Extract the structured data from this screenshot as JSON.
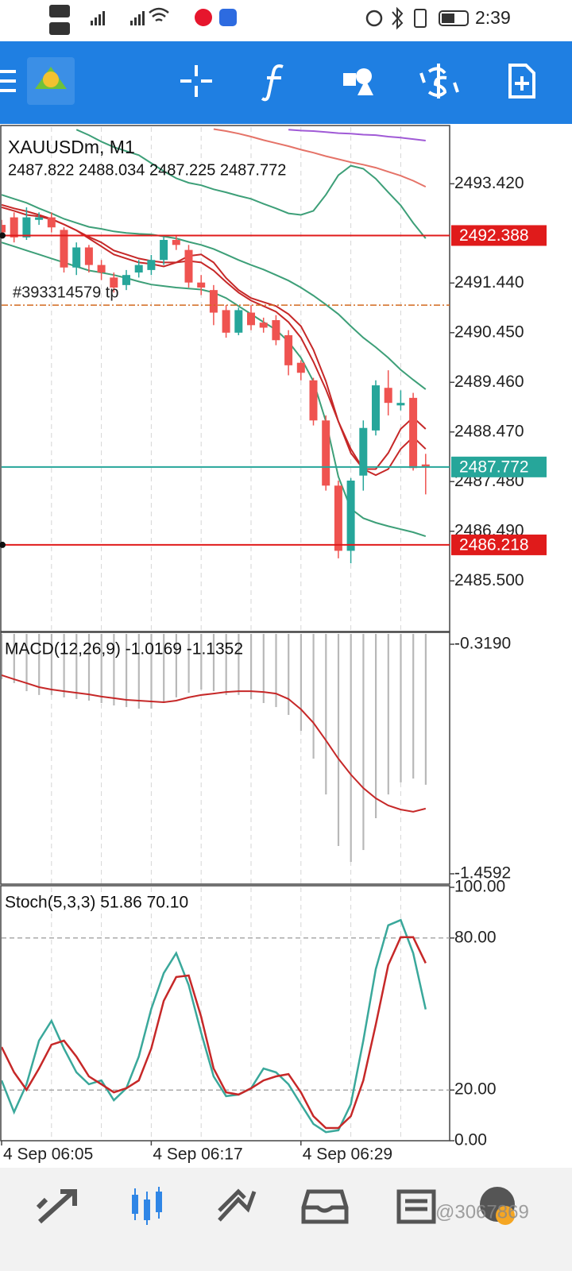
{
  "status_bar": {
    "time": "2:39"
  },
  "watermark": "@3067869",
  "chart_data": [
    {
      "type": "candlestick",
      "title": "XAUUSDm, M1",
      "subtitle": "2487.822 2488.034 2487.225 2487.772",
      "categories": [
        "4 Sep 06:05",
        null,
        null,
        null,
        null,
        null,
        null,
        null,
        null,
        null,
        null,
        null,
        "4 Sep 06:17",
        null,
        null,
        null,
        null,
        null,
        null,
        null,
        null,
        null,
        null,
        null,
        "4 Sep 06:29",
        null,
        null,
        null,
        null,
        null,
        null,
        null,
        null,
        null,
        null
      ],
      "open": [
        2492.6,
        2492.75,
        2492.35,
        2492.7,
        2492.75,
        2492.5,
        2491.75,
        2492.15,
        2491.8,
        2491.55,
        2491.4,
        2491.65,
        2491.7,
        2491.9,
        2492.3,
        2492.1,
        2491.45,
        2491.3,
        2490.9,
        2490.45,
        2490.85,
        2490.65,
        2490.7,
        2490.4,
        2489.85,
        2489.5,
        2488.7,
        2487.4,
        2486.1,
        2487.6,
        2488.5,
        2489.35,
        2489.0,
        2489.15,
        2487.822
      ],
      "high": [
        2492.7,
        2492.85,
        2492.95,
        2492.85,
        2492.85,
        2492.55,
        2492.25,
        2492.2,
        2491.9,
        2491.65,
        2491.7,
        2491.9,
        2492.0,
        2492.4,
        2492.4,
        2492.2,
        2491.6,
        2491.4,
        2491.0,
        2490.95,
        2491.0,
        2490.75,
        2490.8,
        2490.5,
        2489.9,
        2489.55,
        2488.8,
        2487.5,
        2487.55,
        2488.7,
        2489.5,
        2489.7,
        2489.3,
        2489.25,
        2488.034
      ],
      "low": [
        2492.35,
        2492.25,
        2492.3,
        2492.6,
        2492.45,
        2491.65,
        2491.6,
        2491.65,
        2491.5,
        2491.25,
        2491.3,
        2491.55,
        2491.6,
        2491.8,
        2492.1,
        2491.35,
        2491.2,
        2490.6,
        2490.35,
        2490.4,
        2490.5,
        2490.45,
        2490.2,
        2489.6,
        2489.5,
        2488.6,
        2487.3,
        2485.95,
        2485.85,
        2487.3,
        2488.4,
        2488.8,
        2488.9,
        2487.7,
        2487.225
      ],
      "close": [
        2492.45,
        2492.35,
        2492.75,
        2492.75,
        2492.55,
        2491.75,
        2492.15,
        2491.8,
        2491.65,
        2491.35,
        2491.6,
        2491.8,
        2491.9,
        2492.3,
        2492.2,
        2491.45,
        2491.35,
        2490.85,
        2490.45,
        2490.9,
        2490.6,
        2490.55,
        2490.3,
        2489.8,
        2489.65,
        2488.7,
        2487.4,
        2486.1,
        2487.5,
        2488.55,
        2489.4,
        2489.05,
        2489.05,
        2487.75,
        2487.772
      ],
      "up_color": "#26a69a",
      "down_color": "#ef5350",
      "overlays": [
        {
          "color": "#3d9f78",
          "values": [
            null,
            null,
            null,
            null,
            null,
            null,
            2494.5,
            2494.39,
            2494.26,
            2494.15,
            2494.07,
            2493.99,
            2493.83,
            2493.67,
            2493.53,
            2493.44,
            2493.39,
            2493.31,
            2493.25,
            2493.18,
            2493.12,
            2493.02,
            2492.93,
            2492.83,
            2492.8,
            2492.88,
            2493.2,
            2493.59,
            2493.78,
            2493.72,
            2493.52,
            2493.25,
            2492.99,
            2492.64,
            2492.33
          ]
        },
        {
          "color": "#3d9f78",
          "values": [
            2493.2,
            2493.12,
            2493.04,
            2492.93,
            2492.83,
            2492.72,
            2492.64,
            2492.56,
            2492.52,
            2492.47,
            2492.44,
            2492.42,
            2492.41,
            2492.37,
            2492.33,
            2492.26,
            2492.2,
            2492.12,
            2492.01,
            2491.9,
            2491.8,
            2491.71,
            2491.6,
            2491.49,
            2491.35,
            2491.19,
            2491.01,
            2490.82,
            2490.58,
            2490.35,
            2490.16,
            2489.95,
            2489.71,
            2489.51,
            2489.32
          ]
        },
        {
          "color": "#3d9f78",
          "values": [
            2492.25,
            2492.17,
            2492.09,
            2492.01,
            2491.93,
            2491.85,
            2491.77,
            2491.69,
            2491.65,
            2491.6,
            2491.54,
            2491.47,
            2491.41,
            2491.38,
            2491.35,
            2491.33,
            2491.31,
            2491.25,
            2491.14,
            2490.98,
            2490.82,
            2490.66,
            2490.51,
            2490.27,
            2489.95,
            2489.48,
            2488.68,
            2487.58,
            2486.94,
            2486.75,
            2486.66,
            2486.59,
            2486.53,
            2486.47,
            2486.39
          ]
        },
        {
          "color": "#c62828",
          "values": [
            2492.95,
            2492.88,
            2492.8,
            2492.77,
            2492.71,
            2492.61,
            2492.49,
            2492.33,
            2492.17,
            2492.01,
            2491.93,
            2491.85,
            2491.82,
            2491.77,
            2491.85,
            2491.98,
            2492.01,
            2491.85,
            2491.54,
            2491.3,
            2491.14,
            2491.06,
            2490.98,
            2490.82,
            2490.58,
            2490.11,
            2489.48,
            2488.68,
            2488.05,
            2487.73,
            2487.73,
            2488.05,
            2488.53,
            2488.76,
            2488.53
          ]
        },
        {
          "color": "#c62828",
          "values": [
            2493.0,
            2492.93,
            2492.87,
            2492.8,
            2492.72,
            2492.61,
            2492.49,
            2492.36,
            2492.25,
            2492.09,
            2492.01,
            2491.93,
            2491.88,
            2491.85,
            2491.85,
            2491.88,
            2491.85,
            2491.69,
            2491.46,
            2491.25,
            2491.09,
            2490.98,
            2490.87,
            2490.66,
            2490.35,
            2489.87,
            2489.32,
            2488.68,
            2488.13,
            2487.73,
            2487.61,
            2487.73,
            2488.13,
            2488.37,
            2488.13
          ]
        },
        {
          "color": "#e57368",
          "values": [
            null,
            null,
            null,
            null,
            null,
            null,
            null,
            null,
            null,
            null,
            null,
            null,
            null,
            null,
            null,
            null,
            null,
            2494.51,
            2494.47,
            2494.42,
            2494.36,
            2494.29,
            2494.23,
            2494.17,
            2494.1,
            2494.04,
            2493.97,
            2493.91,
            2493.85,
            2493.8,
            2493.74,
            2493.66,
            2493.58,
            2493.48,
            2493.36
          ]
        },
        {
          "color": "#a05ad6",
          "values": [
            null,
            null,
            null,
            null,
            null,
            null,
            null,
            null,
            null,
            null,
            null,
            null,
            null,
            null,
            null,
            null,
            null,
            null,
            null,
            null,
            null,
            null,
            null,
            2494.5,
            2494.48,
            2494.47,
            2494.45,
            2494.43,
            2494.42,
            2494.4,
            2494.39,
            2494.36,
            2494.34,
            2494.31,
            2494.28
          ]
        }
      ],
      "price_lines": [
        {
          "value": 2492.388,
          "color": "#e01b1b"
        },
        {
          "value": 2486.218,
          "color": "#e01b1b"
        },
        {
          "value": 2487.772,
          "color": "#26a69a"
        }
      ],
      "order_line": {
        "value": 2491.0,
        "label": "#393314579 tp",
        "color": "#d2691e"
      },
      "ylim": [
        2484.49,
        2494.55
      ],
      "yticks": [
        {
          "value": 2493.42,
          "label": "2493.420"
        },
        {
          "value": 2491.44,
          "label": "2491.440"
        },
        {
          "value": 2490.45,
          "label": "2490.450"
        },
        {
          "value": 2489.46,
          "label": "2489.460"
        },
        {
          "value": 2488.47,
          "label": "2488.470"
        },
        {
          "value": 2487.48,
          "label": "2487.480"
        },
        {
          "value": 2486.49,
          "label": "2486.490"
        },
        {
          "value": 2485.5,
          "label": "2485.500"
        }
      ]
    },
    {
      "type": "macd",
      "title": "MACD(12,26,9) -1.0169 -1.1352",
      "color": "#b8b8b8",
      "values": [
        -0.493,
        -0.512,
        -0.552,
        -0.571,
        -0.571,
        -0.583,
        -0.591,
        -0.599,
        -0.611,
        -0.623,
        -0.631,
        -0.639,
        -0.639,
        -0.611,
        -0.583,
        -0.56,
        -0.544,
        -0.552,
        -0.571,
        -0.571,
        -0.591,
        -0.611,
        -0.631,
        -0.67,
        -0.749,
        -0.887,
        -1.065,
        -1.321,
        -1.4,
        -1.341,
        -1.183,
        -1.065,
        -1.005,
        -0.986,
        -1.0169
      ],
      "signal": {
        "color": "#c62828",
        "values": [
          -0.473,
          -0.493,
          -0.512,
          -0.532,
          -0.544,
          -0.552,
          -0.56,
          -0.568,
          -0.579,
          -0.587,
          -0.595,
          -0.599,
          -0.603,
          -0.607,
          -0.599,
          -0.583,
          -0.571,
          -0.564,
          -0.556,
          -0.552,
          -0.552,
          -0.556,
          -0.564,
          -0.591,
          -0.642,
          -0.709,
          -0.796,
          -0.887,
          -0.966,
          -1.033,
          -1.084,
          -1.12,
          -1.14,
          -1.151,
          -1.1352
        ]
      },
      "ylim": [
        -1.5105,
        -0.2677
      ],
      "yticks": [
        {
          "value": -0.319,
          "label": "-0.3190"
        },
        -1.4592
      ]
    },
    {
      "type": "stochastic",
      "title": "Stoch(5,3,3) 51.86 70.10",
      "series": [
        {
          "color": "#3aa89b",
          "values": [
            23.8,
            11.3,
            22.3,
            39.5,
            47.3,
            36.4,
            27.0,
            22.3,
            23.8,
            16.0,
            20.7,
            33.2,
            52.0,
            66.1,
            74.0,
            61.4,
            42.6,
            25.4,
            17.6,
            18.2,
            20.7,
            28.5,
            27.0,
            22.3,
            14.4,
            6.6,
            3.4,
            4.1,
            14.4,
            39.5,
            67.7,
            85.0,
            87.1,
            74.0,
            51.86
          ]
        },
        {
          "color": "#c62828",
          "values": [
            37.0,
            27.0,
            20.1,
            28.5,
            37.9,
            39.5,
            33.2,
            25.4,
            22.3,
            19.1,
            20.7,
            23.8,
            36.4,
            55.2,
            64.6,
            65.2,
            48.9,
            28.5,
            19.1,
            18.2,
            20.7,
            23.8,
            25.4,
            26.3,
            19.1,
            9.7,
            5.0,
            5.0,
            9.7,
            23.8,
            45.8,
            69.3,
            80.3,
            80.3,
            70.1
          ]
        }
      ],
      "levels": [
        20,
        80
      ],
      "ylim": [
        0,
        100
      ],
      "yticks": [
        {
          "value": 100,
          "label": "100.00"
        },
        {
          "value": 80,
          "label": "80.00"
        },
        {
          "value": 20,
          "label": "20.00"
        },
        {
          "value": 0,
          "label": "0.00"
        }
      ]
    }
  ]
}
